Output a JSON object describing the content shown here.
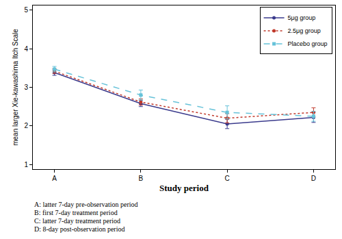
{
  "chart_data": {
    "type": "line",
    "x_label": "Study period",
    "y_label": "mean larger Xie-kawashima Itch Scale",
    "categories": [
      "A",
      "B",
      "C",
      "D"
    ],
    "ylim": [
      0.88,
      5.12
    ],
    "yticks": [
      1,
      2,
      3,
      4,
      5
    ],
    "grid": false,
    "legend": "top right",
    "series": [
      {
        "name": "5μg group",
        "color": "#3a3a8c",
        "marker": "circle",
        "line_style": "solid",
        "values": [
          3.38,
          2.58,
          2.05,
          2.22
        ],
        "errors": [
          0.07,
          0.08,
          0.12,
          0.13
        ]
      },
      {
        "name": "2.5μg group",
        "color": "#c0392b",
        "marker": "circle",
        "line_style": "dot",
        "values": [
          3.42,
          2.62,
          2.2,
          2.35
        ],
        "errors": [
          0.06,
          0.08,
          0.12,
          0.12
        ]
      },
      {
        "name": "Placebo group",
        "color": "#66c2d9",
        "marker": "square",
        "line_style": "dash",
        "values": [
          3.47,
          2.8,
          2.35,
          2.25
        ],
        "errors": [
          0.07,
          0.13,
          0.17,
          0.13
        ]
      }
    ],
    "annotations": [
      "A: latter 7-day pre-observation period",
      "B: first 7-day treatment period",
      "C: latter 7-day treatment period",
      "D: 8-day post-observation period"
    ]
  }
}
